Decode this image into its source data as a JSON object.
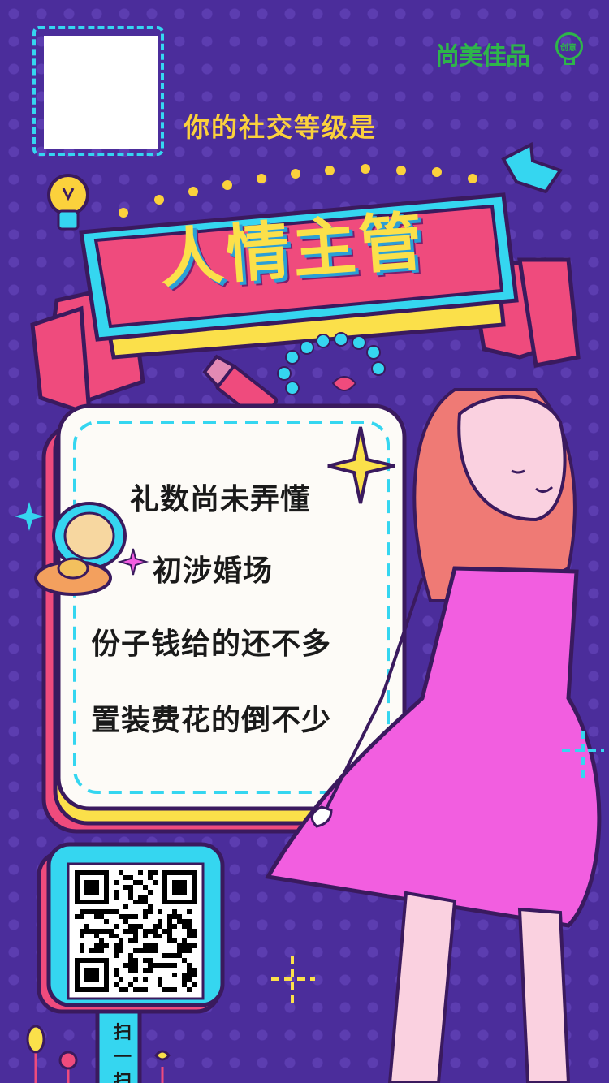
{
  "brand": {
    "name": "尚美佳品",
    "badge": "创意"
  },
  "heading": "你的社交等级是",
  "rank_title": "人情主管",
  "card_lines": [
    "礼数尚未弄懂",
    "初涉婚场",
    "份子钱给的还不多",
    "置装费花的倒不少"
  ],
  "scan_label": "扫一扫",
  "colors": {
    "background": "#4b2d9b",
    "accent_yellow": "#fbd13c",
    "banner_pink": "#ef4b7d",
    "accent_cyan": "#35d6f0",
    "dress": "#f25ee0",
    "logo_green": "#2eb54a"
  }
}
